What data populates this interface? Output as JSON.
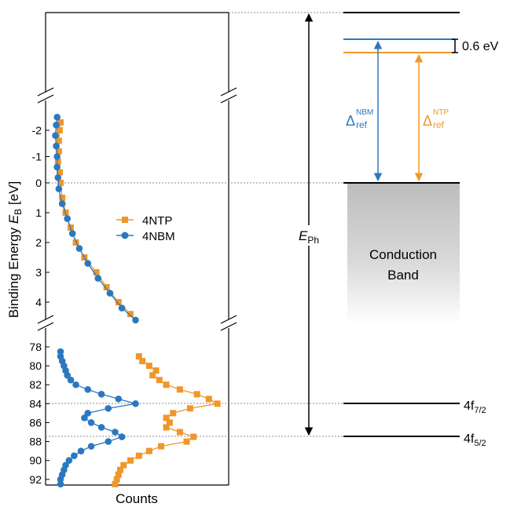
{
  "chart_data": {
    "type": "scatter",
    "title": "",
    "xlabel": "Counts",
    "ylabel_main": "Binding Energy ",
    "ylabel_sym": "E",
    "ylabel_sub": "B",
    "ylabel_unit": " [eV]",
    "y_axis": "inverted, broken",
    "y_segments": [
      {
        "range": [
          -2.6,
          0.0
        ],
        "ticks": [
          "-2",
          "-1",
          "0"
        ]
      },
      {
        "range": [
          0.0,
          4.7
        ],
        "ticks": [
          "1",
          "2",
          "3",
          "4"
        ]
      },
      {
        "range": [
          77.0,
          93.0
        ],
        "ticks": [
          "78",
          "80",
          "82",
          "84",
          "86",
          "88",
          "90",
          "92"
        ]
      }
    ],
    "grid": false,
    "legend": "center-left",
    "series": [
      {
        "name": "4NTP",
        "color": "#f0962a",
        "marker": "square",
        "valence": [
          {
            "y": -2.3,
            "c": 0.06
          },
          {
            "y": -2.0,
            "c": 0.055
          },
          {
            "y": -1.6,
            "c": 0.05
          },
          {
            "y": -1.2,
            "c": 0.05
          },
          {
            "y": -0.8,
            "c": 0.045
          },
          {
            "y": -0.4,
            "c": 0.055
          },
          {
            "y": 0.0,
            "c": 0.06
          },
          {
            "y": 0.5,
            "c": 0.07
          },
          {
            "y": 1.0,
            "c": 0.09
          },
          {
            "y": 1.5,
            "c": 0.12
          },
          {
            "y": 2.0,
            "c": 0.15
          },
          {
            "y": 2.5,
            "c": 0.2
          },
          {
            "y": 3.0,
            "c": 0.27
          },
          {
            "y": 3.5,
            "c": 0.33
          },
          {
            "y": 4.0,
            "c": 0.4
          },
          {
            "y": 4.4,
            "c": 0.47
          }
        ],
        "core": [
          {
            "y": 79.0,
            "c": 0.52
          },
          {
            "y": 79.5,
            "c": 0.54
          },
          {
            "y": 80.0,
            "c": 0.58
          },
          {
            "y": 80.5,
            "c": 0.62
          },
          {
            "y": 81.0,
            "c": 0.6
          },
          {
            "y": 81.5,
            "c": 0.64
          },
          {
            "y": 82.0,
            "c": 0.68
          },
          {
            "y": 82.5,
            "c": 0.76
          },
          {
            "y": 83.0,
            "c": 0.86
          },
          {
            "y": 83.5,
            "c": 0.93
          },
          {
            "y": 84.0,
            "c": 0.98
          },
          {
            "y": 84.5,
            "c": 0.82
          },
          {
            "y": 85.0,
            "c": 0.72
          },
          {
            "y": 85.5,
            "c": 0.68
          },
          {
            "y": 86.0,
            "c": 0.7
          },
          {
            "y": 86.5,
            "c": 0.68
          },
          {
            "y": 87.0,
            "c": 0.76
          },
          {
            "y": 87.5,
            "c": 0.84
          },
          {
            "y": 88.0,
            "c": 0.8
          },
          {
            "y": 88.5,
            "c": 0.65
          },
          {
            "y": 89.0,
            "c": 0.58
          },
          {
            "y": 89.5,
            "c": 0.52
          },
          {
            "y": 90.0,
            "c": 0.47
          },
          {
            "y": 90.5,
            "c": 0.43
          },
          {
            "y": 91.0,
            "c": 0.41
          },
          {
            "y": 91.5,
            "c": 0.4
          },
          {
            "y": 92.0,
            "c": 0.39
          },
          {
            "y": 92.5,
            "c": 0.38
          }
        ]
      },
      {
        "name": "4NBM",
        "color": "#2b78c0",
        "marker": "circle",
        "valence": [
          {
            "y": -2.5,
            "c": 0.04
          },
          {
            "y": -2.2,
            "c": 0.035
          },
          {
            "y": -1.8,
            "c": 0.03
          },
          {
            "y": -1.4,
            "c": 0.035
          },
          {
            "y": -1.0,
            "c": 0.04
          },
          {
            "y": -0.6,
            "c": 0.04
          },
          {
            "y": -0.2,
            "c": 0.045
          },
          {
            "y": 0.2,
            "c": 0.05
          },
          {
            "y": 0.7,
            "c": 0.07
          },
          {
            "y": 1.2,
            "c": 0.1
          },
          {
            "y": 1.7,
            "c": 0.13
          },
          {
            "y": 2.2,
            "c": 0.17
          },
          {
            "y": 2.7,
            "c": 0.22
          },
          {
            "y": 3.2,
            "c": 0.28
          },
          {
            "y": 3.7,
            "c": 0.35
          },
          {
            "y": 4.2,
            "c": 0.42
          },
          {
            "y": 4.6,
            "c": 0.5
          }
        ],
        "core": [
          {
            "y": 78.5,
            "c": 0.06
          },
          {
            "y": 79.0,
            "c": 0.06
          },
          {
            "y": 79.5,
            "c": 0.07
          },
          {
            "y": 80.0,
            "c": 0.08
          },
          {
            "y": 80.5,
            "c": 0.09
          },
          {
            "y": 81.0,
            "c": 0.1
          },
          {
            "y": 81.5,
            "c": 0.12
          },
          {
            "y": 82.0,
            "c": 0.15
          },
          {
            "y": 82.5,
            "c": 0.22
          },
          {
            "y": 83.0,
            "c": 0.3
          },
          {
            "y": 83.5,
            "c": 0.4
          },
          {
            "y": 84.0,
            "c": 0.5
          },
          {
            "y": 84.5,
            "c": 0.34
          },
          {
            "y": 85.0,
            "c": 0.22
          },
          {
            "y": 85.5,
            "c": 0.2
          },
          {
            "y": 86.0,
            "c": 0.24
          },
          {
            "y": 86.5,
            "c": 0.3
          },
          {
            "y": 87.0,
            "c": 0.38
          },
          {
            "y": 87.5,
            "c": 0.42
          },
          {
            "y": 88.0,
            "c": 0.34
          },
          {
            "y": 88.5,
            "c": 0.24
          },
          {
            "y": 89.0,
            "c": 0.18
          },
          {
            "y": 89.5,
            "c": 0.14
          },
          {
            "y": 90.0,
            "c": 0.11
          },
          {
            "y": 90.5,
            "c": 0.09
          },
          {
            "y": 91.0,
            "c": 0.08
          },
          {
            "y": 91.5,
            "c": 0.07
          },
          {
            "y": 92.0,
            "c": 0.06
          },
          {
            "y": 92.5,
            "c": 0.06
          }
        ]
      }
    ]
  },
  "diagram": {
    "gap_label": "0.6 eV",
    "e_ph_sym": "E",
    "e_ph_sub": "Ph",
    "delta_nbm_sym": "Δ",
    "delta_nbm_sup": "NBM",
    "delta_nbm_sub": "ref",
    "delta_ntp_sym": "Δ",
    "delta_ntp_sup": "NTP",
    "delta_ntp_sub": "ref",
    "band_line1": "Conduction",
    "band_line2": "Band",
    "level_72_main": "4f",
    "level_72_sub": "7/2",
    "level_52_main": "4f",
    "level_52_sub": "5/2",
    "color_nbm": "#2b78c0",
    "color_ntp": "#f0962a"
  }
}
